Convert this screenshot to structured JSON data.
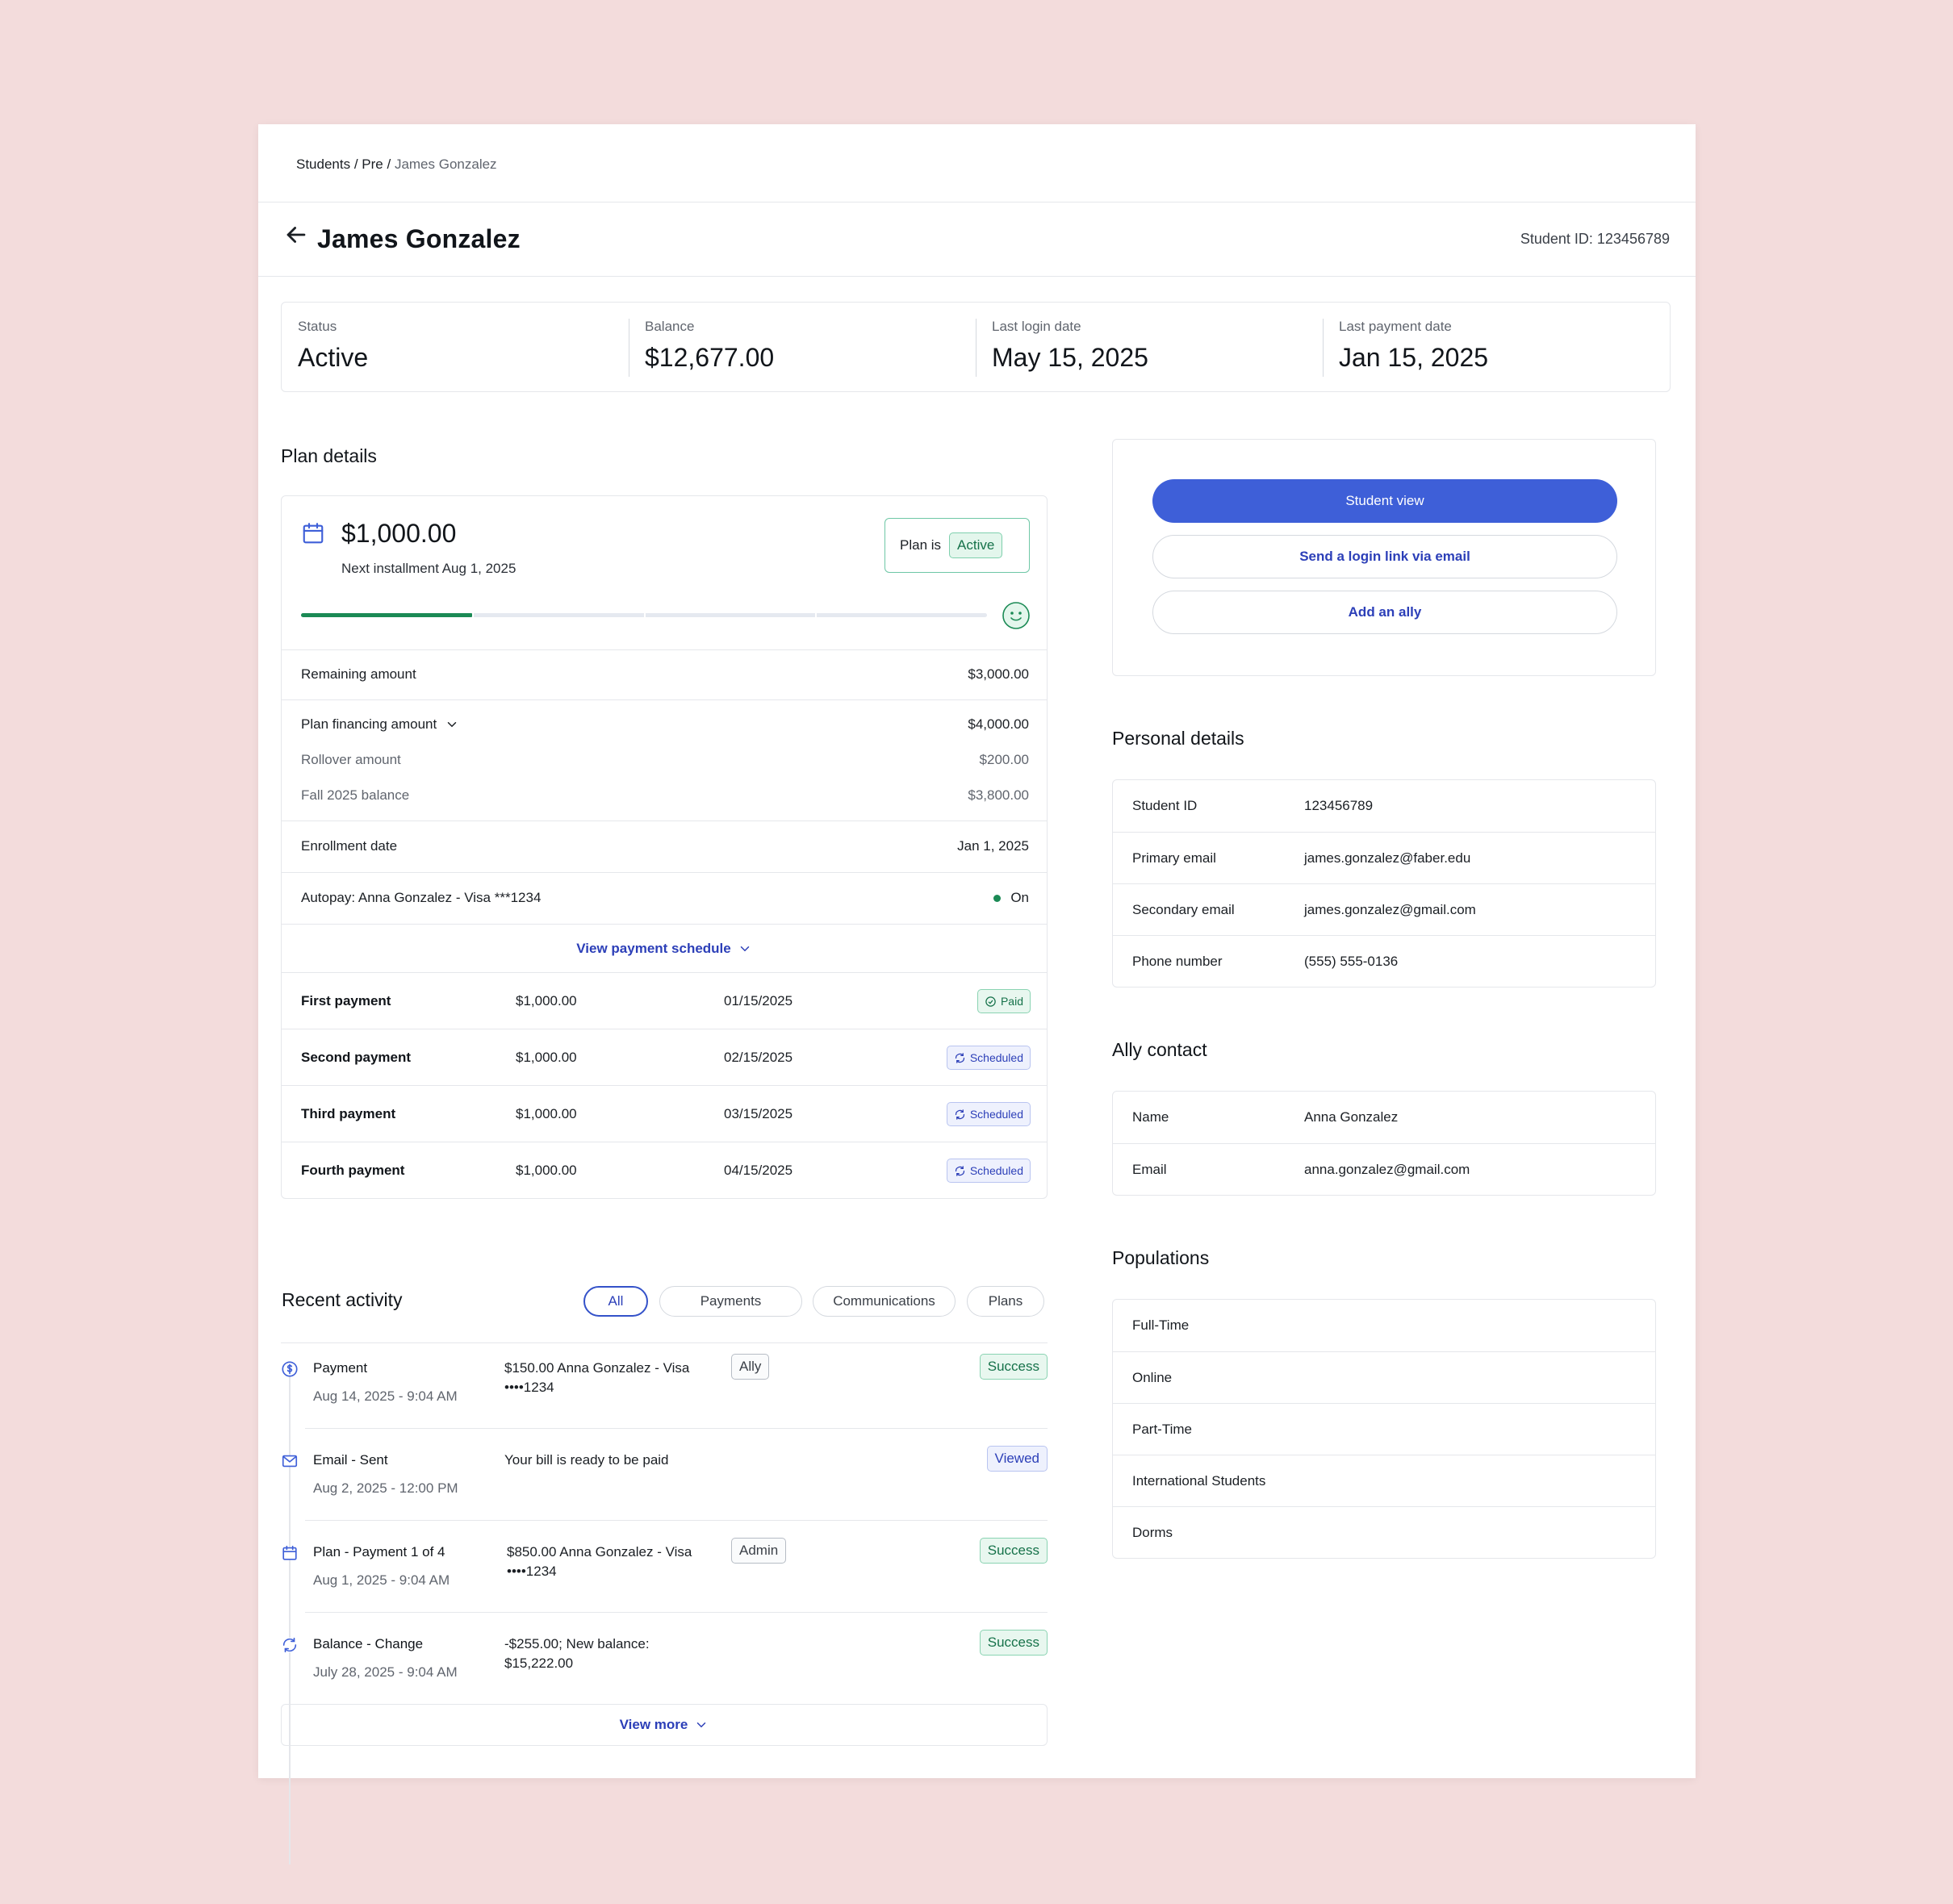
{
  "breadcrumb": {
    "part1": "Students /",
    "part2": "Pre /",
    "current": "James Gonzalez"
  },
  "header": {
    "title": "James Gonzalez",
    "student_id": "Student ID: 123456789"
  },
  "stats": [
    {
      "label": "Status",
      "value": "Active"
    },
    {
      "label": "Balance",
      "value": "$12,677.00"
    },
    {
      "label": "Last login date",
      "value": "May 15, 2025"
    },
    {
      "label": "Last payment date",
      "value": "Jan 15, 2025"
    }
  ],
  "plan": {
    "section_title": "Plan details",
    "amount": "$1,000.00",
    "next_installment": "Next installment Aug 1, 2025",
    "status_prefix": "Plan is",
    "status": "Active",
    "progress": 0.25,
    "remaining_label": "Remaining amount",
    "remaining_value": "$3,000.00",
    "financing_label": "Plan financing amount",
    "financing_value": "$4,000.00",
    "rollover_label": "Rollover amount",
    "rollover_value": "$200.00",
    "fall_label": "Fall 2025 balance",
    "fall_value": "$3,800.00",
    "enrollment_label": "Enrollment date",
    "enrollment_value": "Jan 1, 2025",
    "autopay_label": "Autopay: Anna Gonzalez - Visa ***1234",
    "autopay_value": "On",
    "schedule_link": "View payment schedule",
    "payments": [
      {
        "name": "First payment",
        "amount": "$1,000.00",
        "date": "01/15/2025",
        "status": "Paid"
      },
      {
        "name": "Second payment",
        "amount": "$1,000.00",
        "date": "02/15/2025",
        "status": "Scheduled"
      },
      {
        "name": "Third payment",
        "amount": "$1,000.00",
        "date": "03/15/2025",
        "status": "Scheduled"
      },
      {
        "name": "Fourth payment",
        "amount": "$1,000.00",
        "date": "04/15/2025",
        "status": "Scheduled"
      }
    ]
  },
  "recent": {
    "title": "Recent activity",
    "filters": [
      "All",
      "Payments",
      "Communications",
      "Plans"
    ],
    "items": [
      {
        "title": "Payment",
        "time": "Aug 14, 2025 - 9:04 AM",
        "desc": "$150.00 Anna Gonzalez - Visa ••••1234",
        "tag": "Ally",
        "status": "Success",
        "icon": "dollar-icon"
      },
      {
        "title": "Email - Sent",
        "time": "Aug 2, 2025 - 12:00 PM",
        "desc": "Your bill is ready to be paid",
        "tag": "",
        "status": "Viewed",
        "icon": "mail-icon"
      },
      {
        "title": "Plan - Payment 1 of 4",
        "time": "Aug 1, 2025 - 9:04 AM",
        "desc": "$850.00 Anna Gonzalez - Visa ••••1234",
        "tag": "Admin",
        "status": "Success",
        "icon": "calendar-icon"
      },
      {
        "title": "Balance - Change",
        "time": "July 28, 2025 - 9:04 AM",
        "desc": "-$255.00; New balance: $15,222.00",
        "tag": "",
        "status": "Success",
        "icon": "refresh-icon"
      }
    ],
    "view_more": "View more"
  },
  "actions": {
    "student_view": "Student view",
    "send_login": "Send a login link via email",
    "add_ally": "Add an ally"
  },
  "personal": {
    "title": "Personal details",
    "rows": [
      {
        "label": "Student ID",
        "value": "123456789"
      },
      {
        "label": "Primary email",
        "value": "james.gonzalez@faber.edu"
      },
      {
        "label": "Secondary email",
        "value": "james.gonzalez@gmail.com"
      },
      {
        "label": "Phone number",
        "value": "(555) 555-0136"
      }
    ]
  },
  "ally": {
    "title": "Ally contact",
    "rows": [
      {
        "label": "Name",
        "value": "Anna Gonzalez"
      },
      {
        "label": "Email",
        "value": "anna.gonzalez@gmail.com"
      }
    ]
  },
  "populations": {
    "title": "Populations",
    "items": [
      "Full-Time",
      "Online",
      "Part-Time",
      "International Students",
      "Dorms"
    ]
  },
  "colors": {
    "accent": "#3e5fd8",
    "success": "#16724a",
    "background": "#f3dcdc"
  }
}
